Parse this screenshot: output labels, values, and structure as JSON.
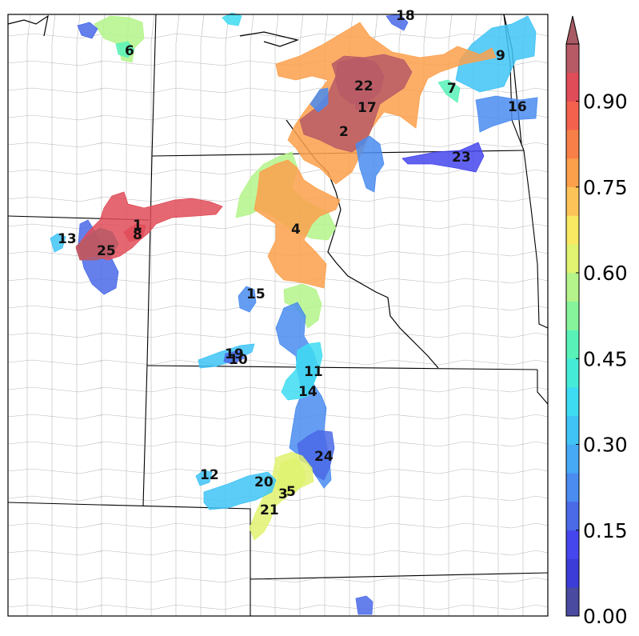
{
  "map": {
    "colorbar": {
      "ticks": [
        "0.00",
        "0.15",
        "0.30",
        "0.45",
        "0.60",
        "0.75",
        "0.90"
      ],
      "tick_values": [
        0.0,
        0.15,
        0.3,
        0.45,
        0.6,
        0.75,
        0.9
      ],
      "range": [
        0.0,
        1.0
      ],
      "extend": "max",
      "bins": 20,
      "colors": [
        "#4a4aa0",
        "#3c3cd8",
        "#4646ee",
        "#4a6ae8",
        "#4a8cf0",
        "#46aaf4",
        "#40c4f6",
        "#3edcf2",
        "#44ecd8",
        "#58f2b8",
        "#86f49a",
        "#b4f48a",
        "#e0f270",
        "#f8e862",
        "#fcc458",
        "#fca04c",
        "#f88048",
        "#f4624e",
        "#e04c58",
        "#b85a66",
        "#a85a64"
      ]
    },
    "objects": [
      {
        "id": "1",
        "prob": 0.92
      },
      {
        "id": "2",
        "prob": 0.95
      },
      {
        "id": "3",
        "prob": 0.62
      },
      {
        "id": "4",
        "prob": 0.78
      },
      {
        "id": "5",
        "prob": 0.62
      },
      {
        "id": "6",
        "prob": 0.58
      },
      {
        "id": "7",
        "prob": 0.45
      },
      {
        "id": "8",
        "prob": 0.92
      },
      {
        "id": "9",
        "prob": 0.32
      },
      {
        "id": "10",
        "prob": 0.3
      },
      {
        "id": "11",
        "prob": 0.38
      },
      {
        "id": "12",
        "prob": 0.3
      },
      {
        "id": "13",
        "prob": 0.3
      },
      {
        "id": "14",
        "prob": 0.38
      },
      {
        "id": "15",
        "prob": 0.22
      },
      {
        "id": "16",
        "prob": 0.22
      },
      {
        "id": "17",
        "prob": 0.95
      },
      {
        "id": "18",
        "prob": 0.15
      },
      {
        "id": "19",
        "prob": 0.15
      },
      {
        "id": "20",
        "prob": 0.3
      },
      {
        "id": "21",
        "prob": 0.6
      },
      {
        "id": "22",
        "prob": 0.97
      },
      {
        "id": "23",
        "prob": 0.12
      },
      {
        "id": "24",
        "prob": 0.18
      },
      {
        "id": "25",
        "prob": 0.97
      }
    ]
  }
}
